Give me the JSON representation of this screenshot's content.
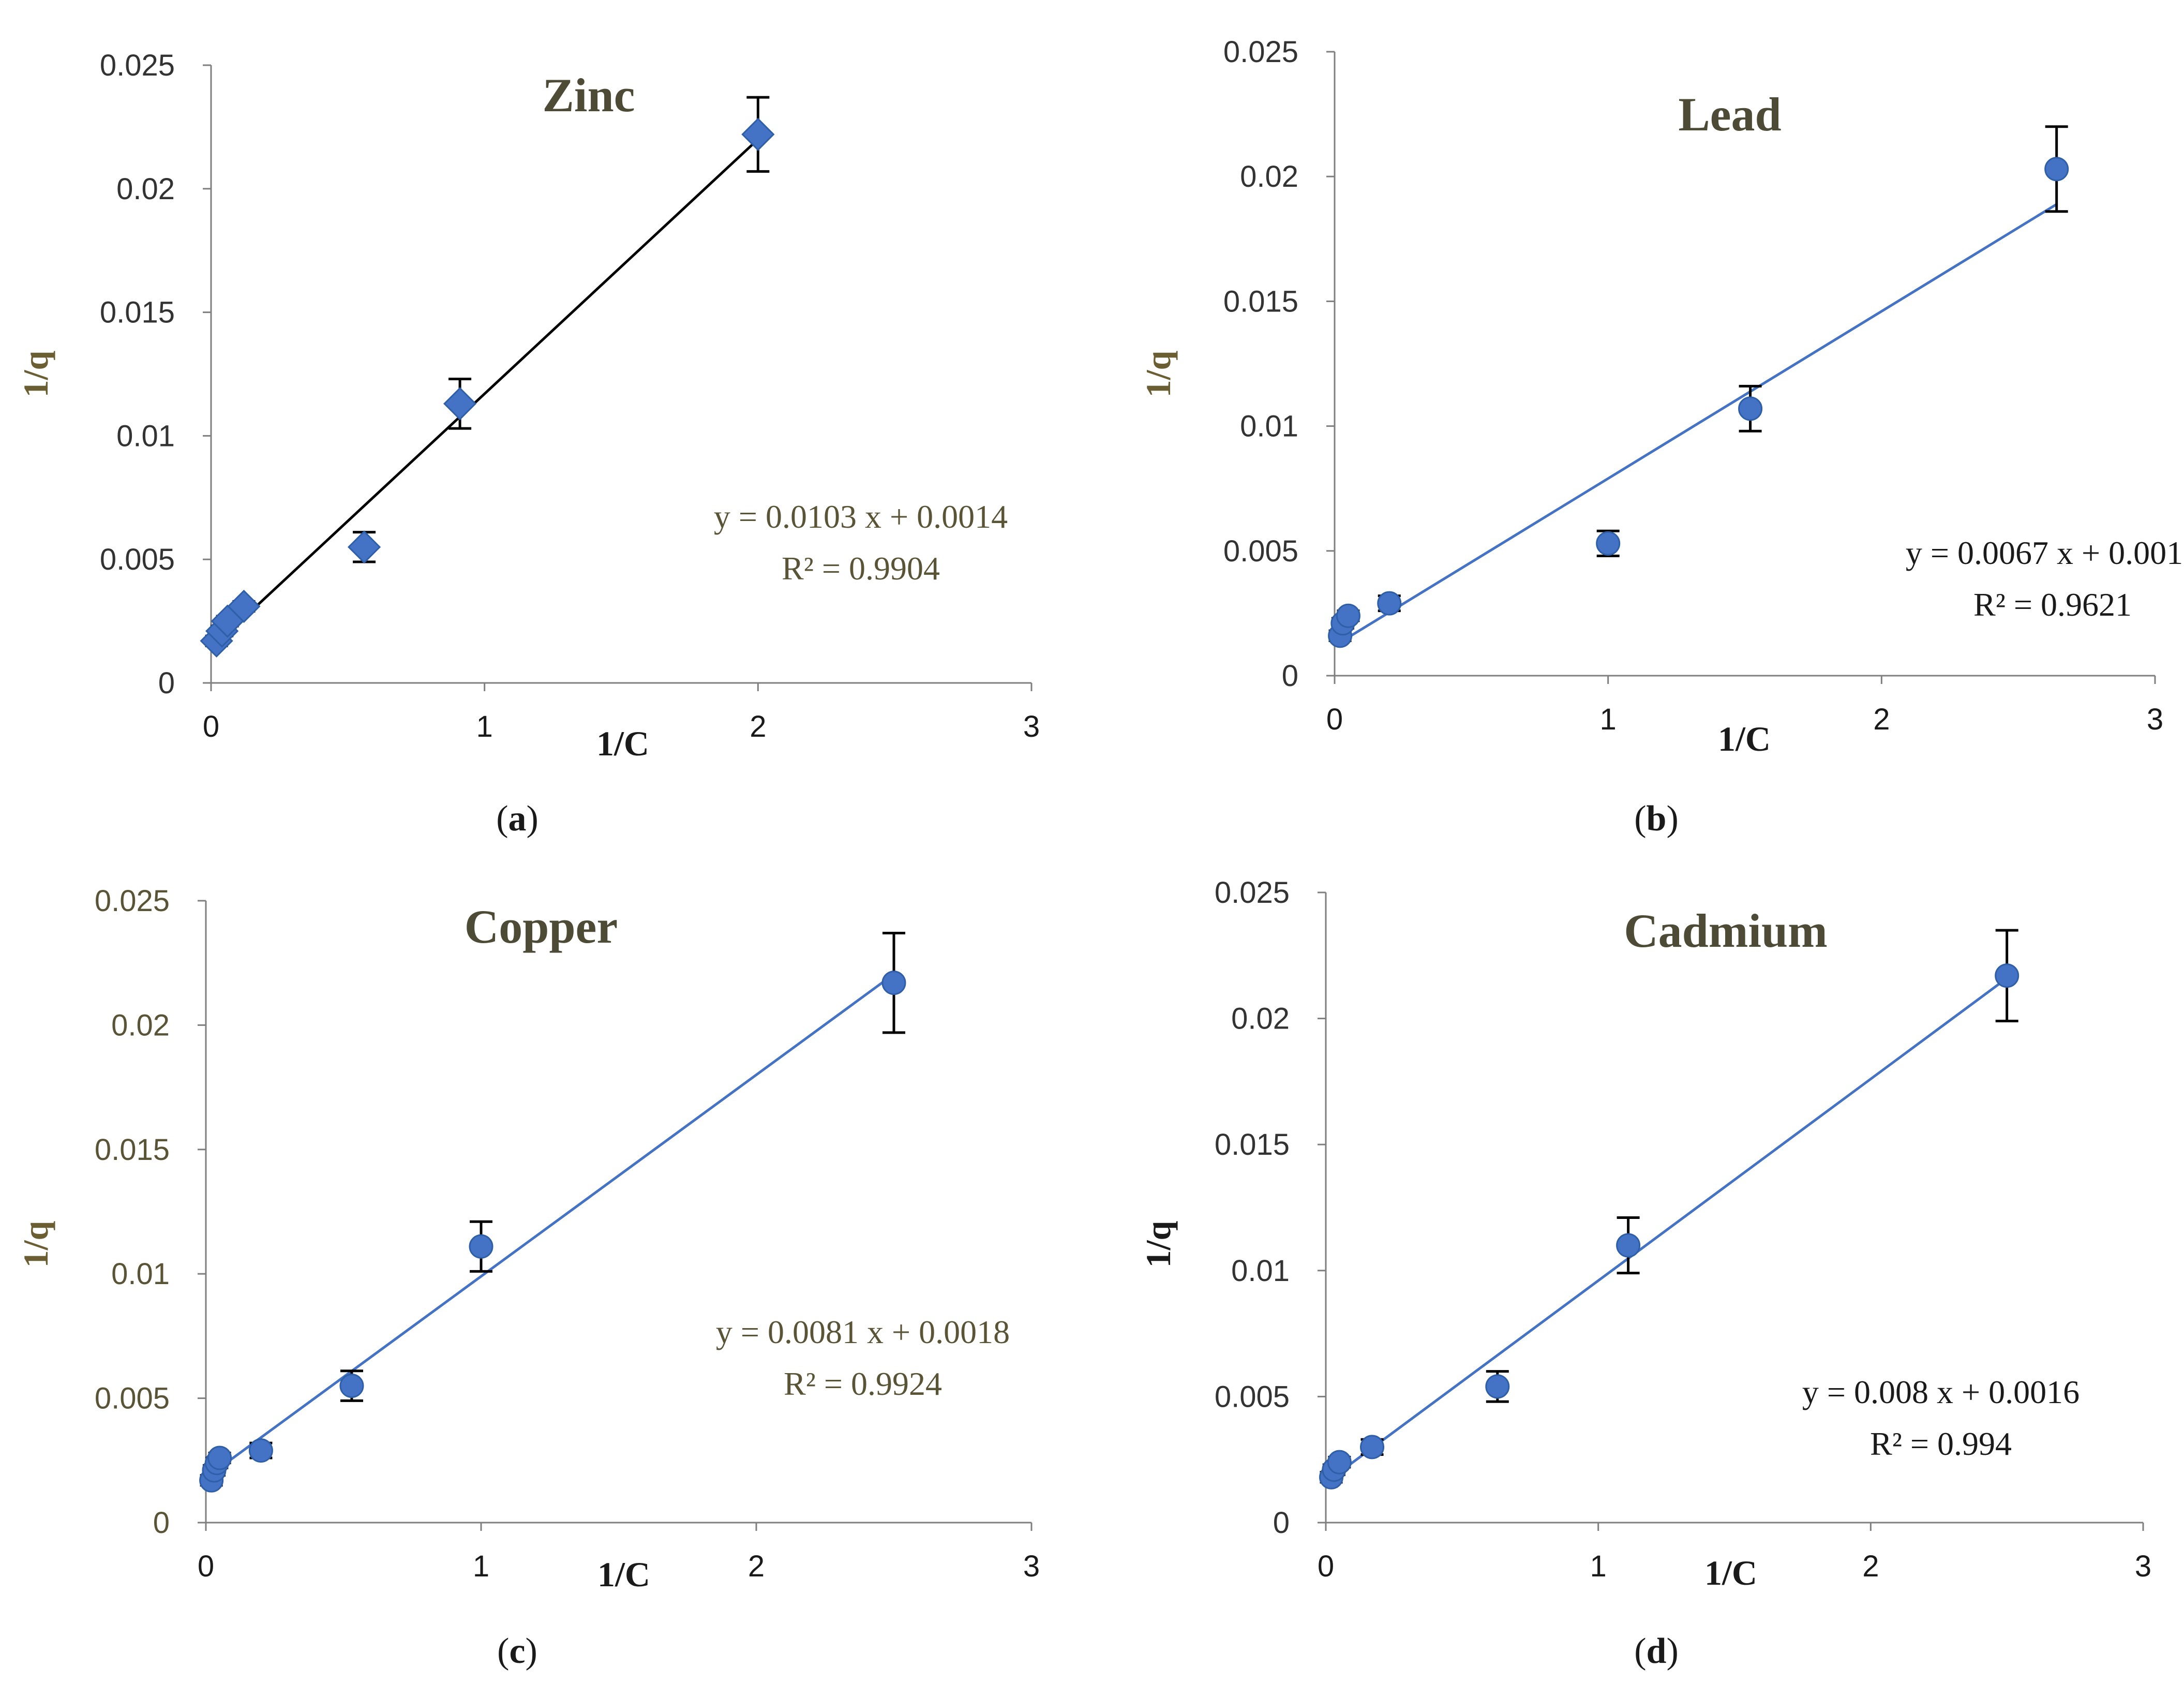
{
  "colors": {
    "axis": "#7f7f7f",
    "title": "#4d4a35",
    "eq_text": "#5a5436",
    "ytick_dark": "#333333",
    "ytick_olive": "#5a5436",
    "marker": "#4472c4",
    "marker_stroke": "#2e5fa8",
    "line_blue": "#4472c4",
    "line_black": "#000000",
    "errorbar": "#000000",
    "label_dark": "#1a1a1a",
    "axis_label_olive": "#6b5e33"
  },
  "chart_data": [
    {
      "type": "scatter",
      "panel": "a",
      "caption": "(a)",
      "caption_letter": "a",
      "title": "Zinc",
      "xlabel": "1/C",
      "ylabel": "1/q",
      "xlim": [
        0,
        3
      ],
      "ylim": [
        0,
        0.025
      ],
      "xticks": [
        "0",
        "1",
        "2",
        "3"
      ],
      "yticks": [
        "0",
        "0.005",
        "0.01",
        "0.015",
        "0.02",
        "0.025"
      ],
      "marker": "diamond",
      "fit_color": "line_black",
      "equation": "y = 0.0103 x + 0.0014",
      "r2": "R² = 0.9904",
      "fit": {
        "slope": 0.0103,
        "intercept": 0.0014,
        "x_range": [
          0.02,
          2
        ]
      },
      "x": [
        0.02,
        0.04,
        0.06,
        0.12,
        0.56,
        0.91,
        2.0
      ],
      "y": [
        0.0017,
        0.0021,
        0.0025,
        0.0031,
        0.0055,
        0.0113,
        0.0222
      ],
      "err": [
        0.0002,
        0.0002,
        0.0002,
        0.0002,
        0.0006,
        0.001,
        0.0015
      ]
    },
    {
      "type": "scatter",
      "panel": "b",
      "caption": "(b)",
      "caption_letter": "b",
      "title": "Lead",
      "xlabel": "1/C",
      "ylabel": "1/q",
      "xlim": [
        0,
        3
      ],
      "ylim": [
        0,
        0.025
      ],
      "xticks": [
        "0",
        "1",
        "2",
        "3"
      ],
      "yticks": [
        "0",
        "0.005",
        "0.01",
        "0.015",
        "0.02",
        "0.025"
      ],
      "marker": "circle",
      "fit_color": "line_blue",
      "equation": "y = 0.0067 x + 0.0012",
      "r2": "R² = 0.9621",
      "fit": {
        "slope": 0.0067,
        "intercept": 0.0012,
        "x_range": [
          0.02,
          2.64
        ]
      },
      "x": [
        0.02,
        0.03,
        0.05,
        0.2,
        1.0,
        1.52,
        2.64
      ],
      "y": [
        0.0016,
        0.0021,
        0.0024,
        0.0029,
        0.0053,
        0.0107,
        0.0203
      ],
      "err": [
        0.0002,
        0.0002,
        0.0002,
        0.0003,
        0.0005,
        0.0009,
        0.0017
      ]
    },
    {
      "type": "scatter",
      "panel": "c",
      "caption": "(c)",
      "caption_letter": "c",
      "title": "Copper",
      "xlabel": "1/C",
      "ylabel": "1/q",
      "xlim": [
        0,
        3
      ],
      "ylim": [
        0,
        0.025
      ],
      "xticks": [
        "0",
        "1",
        "2",
        "3"
      ],
      "yticks": [
        "0",
        "0.005",
        "0.01",
        "0.015",
        "0.02",
        "0.025"
      ],
      "marker": "circle",
      "fit_color": "line_blue",
      "equation": "y = 0.0081 x + 0.0018",
      "r2": "R² = 0.9924",
      "fit": {
        "slope": 0.0081,
        "intercept": 0.0018,
        "x_range": [
          0.02,
          2.5
        ]
      },
      "x": [
        0.02,
        0.03,
        0.04,
        0.05,
        0.2,
        0.53,
        1.0,
        2.5
      ],
      "y": [
        0.0017,
        0.0021,
        0.0024,
        0.0026,
        0.0029,
        0.0055,
        0.0111,
        0.0217
      ],
      "err": [
        0.0002,
        0.0002,
        0.0002,
        0.0002,
        0.0003,
        0.0006,
        0.001,
        0.002
      ]
    },
    {
      "type": "scatter",
      "panel": "d",
      "caption": "(d)",
      "caption_letter": "d",
      "title": "Cadmium",
      "xlabel": "1/C",
      "ylabel": "1/q",
      "xlim": [
        0,
        3
      ],
      "ylim": [
        0,
        0.025
      ],
      "xticks": [
        "0",
        "1",
        "2",
        "3"
      ],
      "yticks": [
        "0",
        "0.005",
        "0.01",
        "0.015",
        "0.02",
        "0.025"
      ],
      "marker": "circle",
      "fit_color": "line_blue",
      "equation": "y = 0.008 x + 0.0016",
      "r2": "R² = 0.994",
      "fit": {
        "slope": 0.008,
        "intercept": 0.0016,
        "x_range": [
          0.02,
          2.5
        ]
      },
      "x": [
        0.02,
        0.03,
        0.05,
        0.17,
        0.63,
        1.11,
        2.5
      ],
      "y": [
        0.0018,
        0.0021,
        0.0024,
        0.003,
        0.0054,
        0.011,
        0.0217
      ],
      "err": [
        0.0002,
        0.0002,
        0.0002,
        0.0003,
        0.0006,
        0.0011,
        0.0018
      ]
    }
  ]
}
